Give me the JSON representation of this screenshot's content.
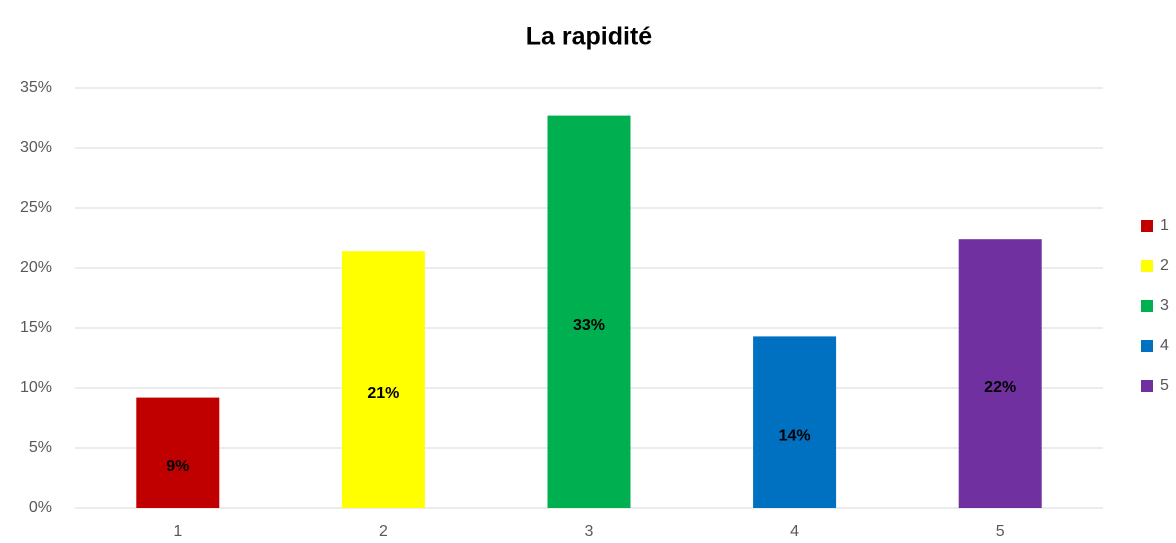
{
  "chart_data": {
    "type": "bar",
    "title": "La rapidité",
    "categories": [
      "1",
      "2",
      "3",
      "4",
      "5"
    ],
    "values": [
      9.2,
      21.4,
      32.7,
      14.3,
      22.4
    ],
    "value_labels": [
      "9%",
      "21%",
      "33%",
      "14%",
      "22%"
    ],
    "colors": [
      "#c00000",
      "#ffff00",
      "#00b050",
      "#0070c0",
      "#7030a0"
    ],
    "ylim": [
      0,
      35
    ],
    "yticks": [
      {
        "value": 0,
        "label": "0%"
      },
      {
        "value": 5,
        "label": "5%"
      },
      {
        "value": 10,
        "label": "10%"
      },
      {
        "value": 15,
        "label": "15%"
      },
      {
        "value": 20,
        "label": "20%"
      },
      {
        "value": 25,
        "label": "25%"
      },
      {
        "value": 30,
        "label": "30%"
      },
      {
        "value": 35,
        "label": "35%"
      }
    ],
    "grid": true,
    "legend": "right"
  }
}
